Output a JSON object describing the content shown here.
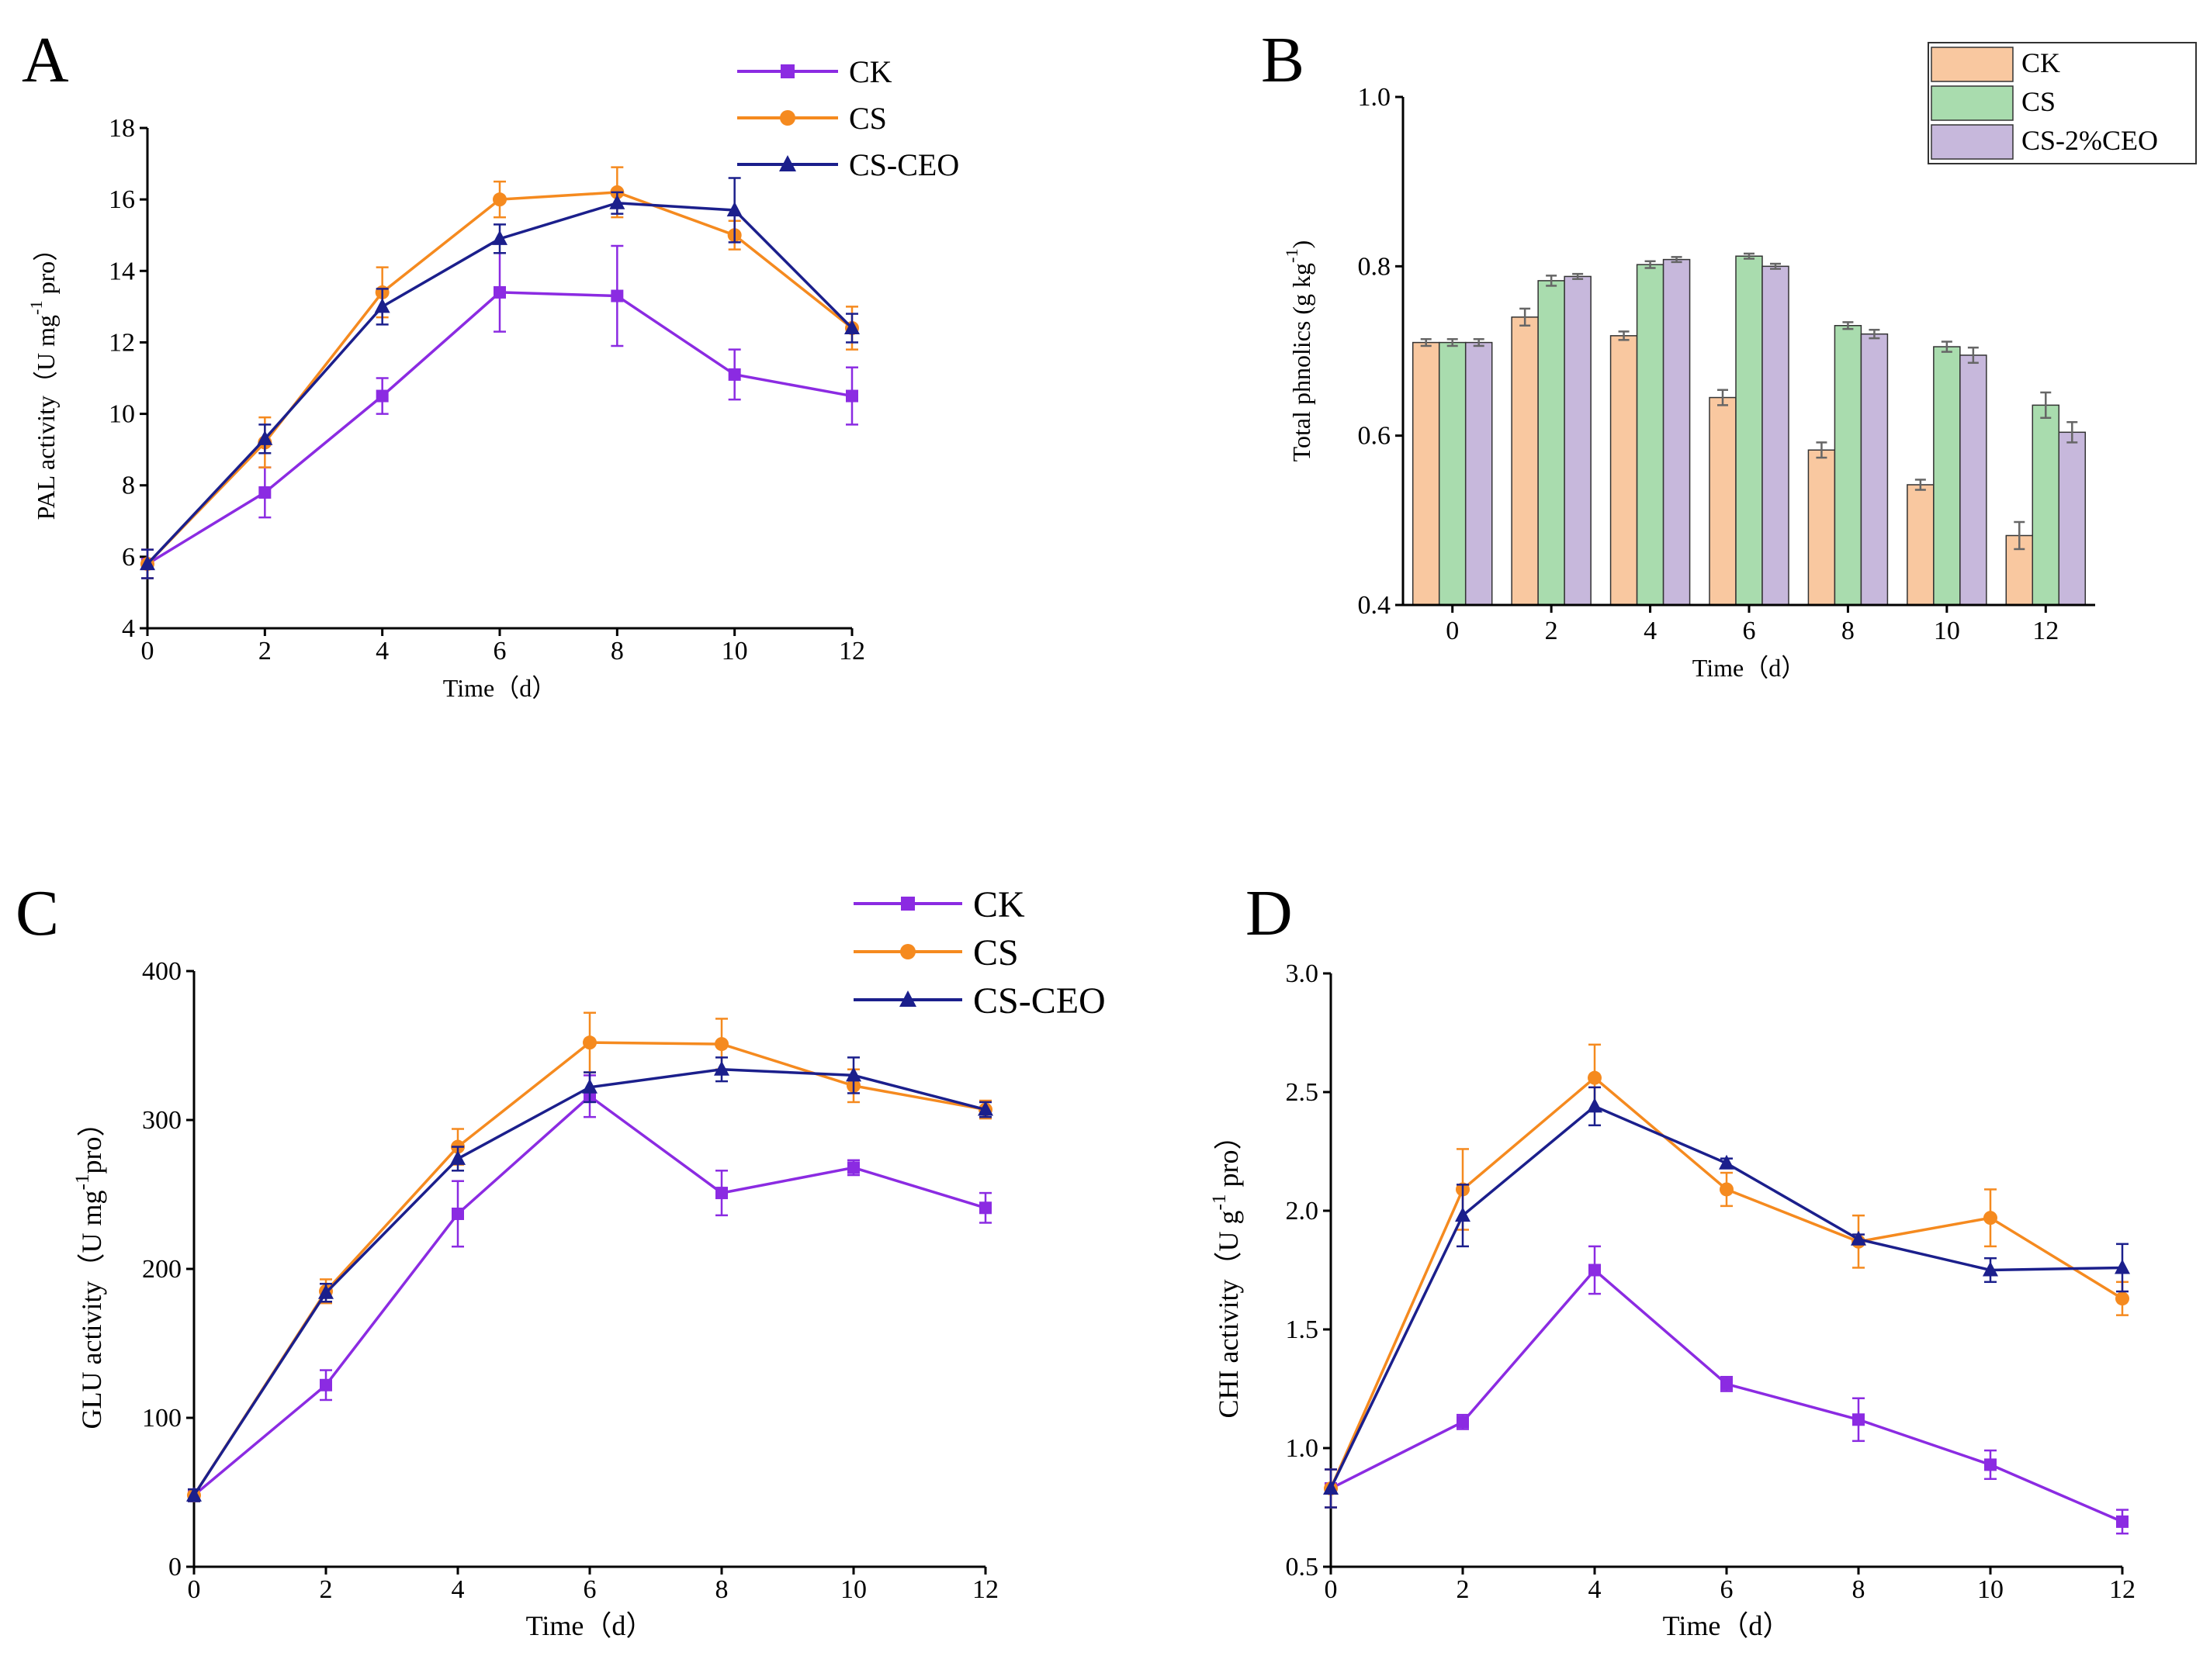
{
  "colors": {
    "CK": "#8b2be2",
    "CS": "#f58a1f",
    "CS-CEO": "#1b1f8c",
    "bar_CK": "#f9c8a0",
    "bar_CS": "#a9dcae",
    "bar_CS2": "#c7b8dc",
    "bar_outline": "#333333",
    "err_bar": "#666666"
  },
  "chart_data": [
    {
      "panel": "A",
      "type": "line",
      "x": [
        0,
        2,
        4,
        6,
        8,
        10,
        12
      ],
      "xlabel": "Time（d）",
      "ylabel": "PAL activity（U mg",
      "ylabel_sup": "-1",
      "ylabel_tail": " pro）",
      "xlim": [
        0,
        12
      ],
      "ylim": [
        4,
        18
      ],
      "xticks": [
        "0",
        "2",
        "4",
        "6",
        "8",
        "10",
        "12"
      ],
      "yticks": [
        "4",
        "6",
        "8",
        "10",
        "12",
        "14",
        "16",
        "18"
      ],
      "legend_position": "top-right",
      "series": [
        {
          "name": "CK",
          "marker": "square",
          "values": [
            5.8,
            7.8,
            10.5,
            13.4,
            13.3,
            11.1,
            10.5
          ],
          "errors": [
            0.4,
            0.7,
            0.5,
            1.1,
            1.4,
            0.7,
            0.8
          ]
        },
        {
          "name": "CS",
          "marker": "circle",
          "values": [
            5.8,
            9.2,
            13.4,
            16.0,
            16.2,
            15.0,
            12.4
          ],
          "errors": [
            0.4,
            0.7,
            0.7,
            0.5,
            0.7,
            0.4,
            0.6
          ]
        },
        {
          "name": "CS-CEO",
          "marker": "triangle",
          "values": [
            5.8,
            9.3,
            13.0,
            14.9,
            15.9,
            15.7,
            12.4
          ],
          "errors": [
            0.4,
            0.4,
            0.5,
            0.4,
            0.3,
            0.9,
            0.4
          ]
        }
      ]
    },
    {
      "panel": "B",
      "type": "bar",
      "categories": [
        "0",
        "2",
        "4",
        "6",
        "8",
        "10",
        "12"
      ],
      "xlabel": "Time（d）",
      "ylabel": "Total phnolics (g kg",
      "ylabel_sup": "-1",
      "ylabel_tail": ")",
      "ylim": [
        0.4,
        1.0
      ],
      "yticks": [
        "0.4",
        "0.6",
        "0.8",
        "1.0"
      ],
      "legend_position": "top-right",
      "series": [
        {
          "name": "CK",
          "values": [
            0.71,
            0.74,
            0.718,
            0.645,
            0.583,
            0.542,
            0.482
          ],
          "errors": [
            0.004,
            0.01,
            0.005,
            0.009,
            0.009,
            0.006,
            0.016
          ]
        },
        {
          "name": "CS",
          "values": [
            0.71,
            0.783,
            0.802,
            0.812,
            0.73,
            0.705,
            0.636
          ],
          "errors": [
            0.004,
            0.006,
            0.004,
            0.003,
            0.004,
            0.006,
            0.015
          ]
        },
        {
          "name": "CS-2%CEO",
          "values": [
            0.71,
            0.788,
            0.808,
            0.8,
            0.72,
            0.695,
            0.604
          ],
          "errors": [
            0.004,
            0.003,
            0.003,
            0.003,
            0.005,
            0.009,
            0.012
          ]
        }
      ]
    },
    {
      "panel": "C",
      "type": "line",
      "x": [
        0,
        2,
        4,
        6,
        8,
        10,
        12
      ],
      "xlabel": "Time（d）",
      "ylabel": "GLU activity（U mg",
      "ylabel_sup": "-1",
      "ylabel_tail": "pro）",
      "xlim": [
        0,
        12
      ],
      "ylim": [
        0,
        400
      ],
      "xticks": [
        "0",
        "2",
        "4",
        "6",
        "8",
        "10",
        "12"
      ],
      "yticks": [
        "0",
        "100",
        "200",
        "300",
        "400"
      ],
      "legend_position": "top-right",
      "series": [
        {
          "name": "CK",
          "marker": "square",
          "values": [
            48,
            122,
            237,
            316,
            251,
            268,
            241
          ],
          "errors": [
            4,
            10,
            22,
            14,
            15,
            5,
            10
          ]
        },
        {
          "name": "CS",
          "marker": "circle",
          "values": [
            48,
            185,
            282,
            352,
            351,
            323,
            307
          ],
          "errors": [
            4,
            8,
            12,
            20,
            17,
            11,
            6
          ]
        },
        {
          "name": "CS-CEO",
          "marker": "triangle",
          "values": [
            48,
            184,
            274,
            322,
            334,
            330,
            307
          ],
          "errors": [
            4,
            6,
            8,
            10,
            8,
            12,
            5
          ]
        }
      ]
    },
    {
      "panel": "D",
      "type": "line",
      "x": [
        0,
        2,
        4,
        6,
        8,
        10,
        12
      ],
      "xlabel": "Time（d）",
      "ylabel": "CHI activity（U g",
      "ylabel_sup": "-1",
      "ylabel_tail": " pro）",
      "xlim": [
        0,
        12
      ],
      "ylim": [
        0.5,
        3.0
      ],
      "xticks": [
        "0",
        "2",
        "4",
        "6",
        "8",
        "10",
        "12"
      ],
      "yticks": [
        "0.5",
        "1.0",
        "1.5",
        "2.0",
        "2.5",
        "3.0"
      ],
      "legend_position": "none",
      "series": [
        {
          "name": "CK",
          "marker": "square",
          "values": [
            0.83,
            1.11,
            1.75,
            1.27,
            1.12,
            0.93,
            0.69
          ],
          "errors": [
            0.08,
            0.03,
            0.1,
            0.03,
            0.09,
            0.06,
            0.05
          ]
        },
        {
          "name": "CS",
          "marker": "circle",
          "values": [
            0.83,
            2.09,
            2.56,
            2.09,
            1.87,
            1.97,
            1.63
          ],
          "errors": [
            0.08,
            0.17,
            0.14,
            0.07,
            0.11,
            0.12,
            0.07
          ]
        },
        {
          "name": "CS-CEO",
          "marker": "triangle",
          "values": [
            0.83,
            1.98,
            2.44,
            2.2,
            1.88,
            1.75,
            1.76
          ],
          "errors": [
            0.08,
            0.13,
            0.08,
            0.02,
            0.02,
            0.05,
            0.1
          ]
        }
      ]
    }
  ]
}
